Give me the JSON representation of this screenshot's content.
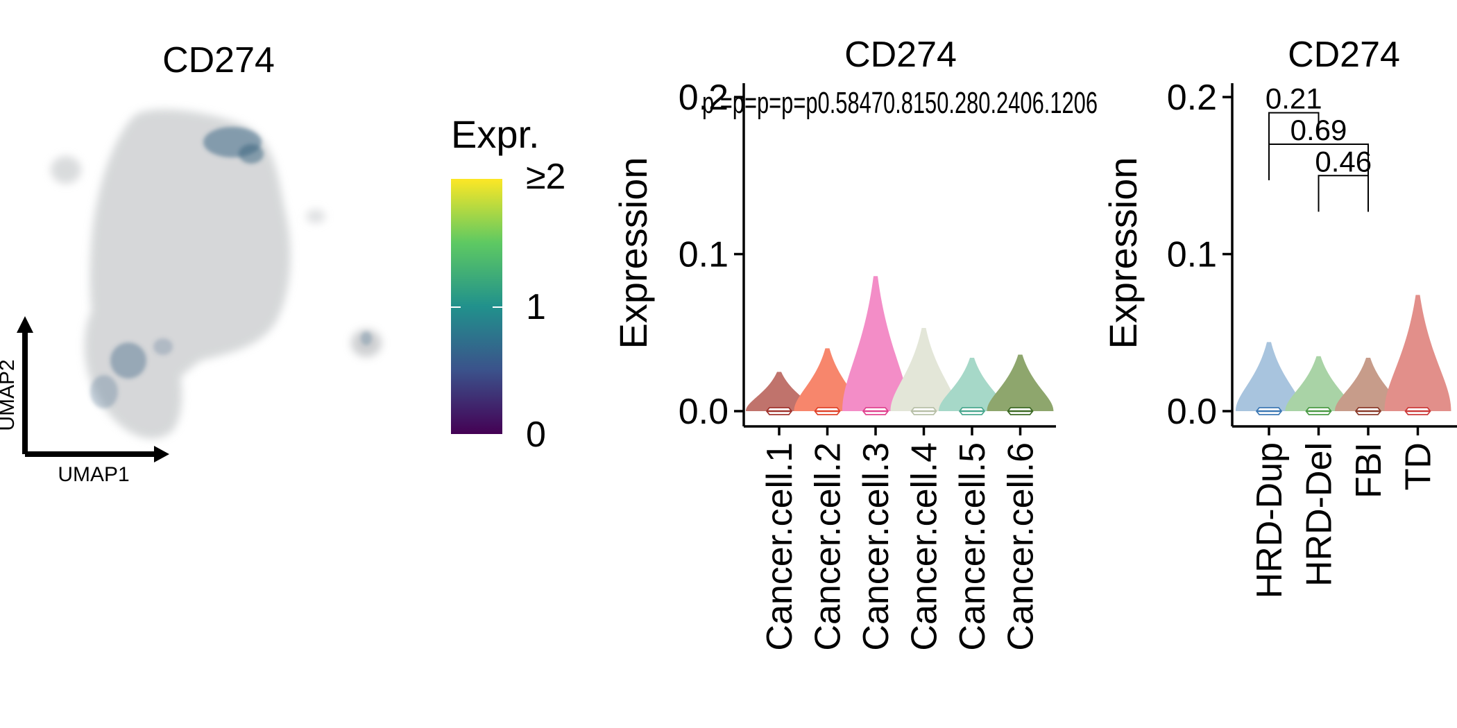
{
  "chart_data": [
    {
      "type": "scatter",
      "title": "CD274",
      "xlabel": "UMAP1",
      "ylabel": "UMAP2",
      "legend": {
        "title": "Expr.",
        "ticks": [
          "0",
          "1",
          "≥2"
        ],
        "range": [
          0,
          2
        ],
        "colors": [
          "#440154",
          "#3b528b",
          "#21918c",
          "#5ec962",
          "#fde725"
        ]
      },
      "point_color_base": "#c8cacc",
      "point_color_expr": "#3e6a86"
    },
    {
      "type": "violin",
      "title": "CD274",
      "ylabel": "Expression",
      "ylim": [
        0,
        0.2
      ],
      "yticks": [
        "0.0",
        "0.1",
        "0.2"
      ],
      "categories": [
        "Cancer.cell.1",
        "Cancer.cell.2",
        "Cancer.cell.3",
        "Cancer.cell.4",
        "Cancer.cell.5",
        "Cancer.cell.6"
      ],
      "colors": [
        "#c0736c",
        "#f7866c",
        "#f38dc7",
        "#e3e6d8",
        "#a6d8c8",
        "#8ea66d"
      ],
      "box_colors": [
        "#a0332d",
        "#e0432a",
        "#e0438f",
        "#b8c0a8",
        "#4aa88f",
        "#3d6a24"
      ],
      "violin_max": [
        0.025,
        0.04,
        0.086,
        0.053,
        0.034,
        0.036
      ],
      "violin_halfwidth": [
        0.0,
        0.0,
        0.0,
        0.0,
        0.0,
        0.0
      ],
      "annotations": [
        "p = 0.58",
        "p = 0.47",
        "p = 0.15",
        "p = 0.28",
        "p = 0.24",
        "p = 0.06",
        "p = 0.1206"
      ],
      "annotation_display": "p =p=p=p=p0.58470.8150.280.2406.1206"
    },
    {
      "type": "violin",
      "title": "CD274",
      "ylabel": "Expression",
      "ylim": [
        0,
        0.2
      ],
      "yticks": [
        "0.0",
        "0.1",
        "0.2"
      ],
      "categories": [
        "HRD-Dup",
        "HRD-Del",
        "FBI",
        "TD"
      ],
      "colors": [
        "#a8c4de",
        "#a9d3a6",
        "#c79c8a",
        "#e28f8a"
      ],
      "box_colors": [
        "#3c78b4",
        "#4a9a44",
        "#8a3a2a",
        "#cc3a3a"
      ],
      "violin_max": [
        0.044,
        0.035,
        0.034,
        0.074
      ],
      "comparisons": [
        {
          "from": 0,
          "to": 1,
          "label": "0.21",
          "y": 0.19,
          "left_drop": 0.147,
          "right_drop": 0.175
        },
        {
          "from": 0,
          "to": 2,
          "label": "0.69",
          "y": 0.17,
          "left_drop": 0.147,
          "right_drop": 0.127
        },
        {
          "from": 1,
          "to": 2,
          "label": "0.46",
          "y": 0.15,
          "left_drop": 0.127,
          "right_drop": 0.127
        }
      ]
    }
  ]
}
